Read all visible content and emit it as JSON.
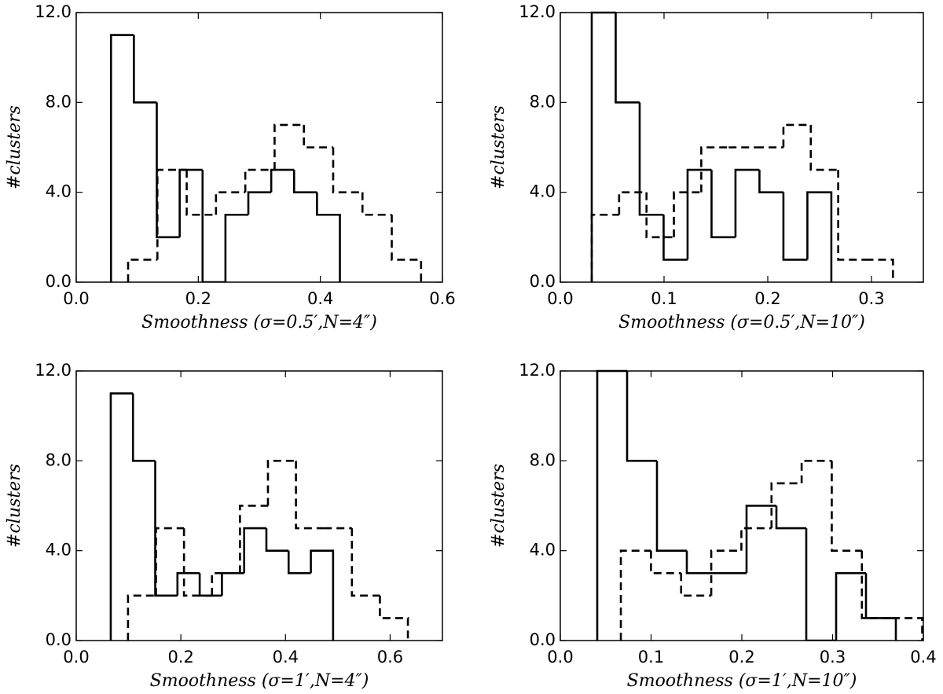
{
  "chart_data": [
    {
      "type": "histogram",
      "xlabel": "Smoothness (σ=0.5′,N=4″)",
      "ylabel": "#clusters",
      "xlim": [
        0,
        0.6
      ],
      "xticks": [
        {
          "value": 0,
          "label": "0.0"
        },
        0.2,
        0.4,
        0.6
      ],
      "ylim": [
        0,
        12
      ],
      "yticks": [
        {
          "value": 0,
          "label": "0.0"
        },
        {
          "value": 4,
          "label": "4.0"
        },
        {
          "value": 8,
          "label": "8.0"
        },
        {
          "value": 12,
          "label": "12.0"
        }
      ],
      "series": [
        {
          "color": "#000000",
          "linestyle": "solid",
          "bins": [
            0.057,
            0.0945,
            0.132,
            0.1695,
            0.207,
            0.2445,
            0.282,
            0.3195,
            0.357,
            0.3945,
            0.432
          ],
          "values": [
            11,
            8,
            2,
            5,
            0,
            3,
            4,
            5,
            4,
            3
          ]
        },
        {
          "color": "#000000",
          "linestyle": "dashed",
          "bins": [
            0.085,
            0.133,
            0.181,
            0.229,
            0.277,
            0.325,
            0.373,
            0.421,
            0.469,
            0.517,
            0.565
          ],
          "values": [
            1,
            5,
            3,
            4,
            5,
            7,
            6,
            4,
            3,
            1
          ]
        }
      ]
    },
    {
      "type": "histogram",
      "xlabel": "Smoothness (σ=0.5′,N=10″)",
      "ylabel": "#clusters",
      "xlim": [
        0,
        0.35
      ],
      "xticks": [
        {
          "value": 0,
          "label": "0.0"
        },
        0.1,
        0.2,
        0.3
      ],
      "ylim": [
        0,
        12
      ],
      "yticks": [
        {
          "value": 0,
          "label": "0.0"
        },
        {
          "value": 4,
          "label": "4.0"
        },
        {
          "value": 8,
          "label": "8.0"
        },
        {
          "value": 12,
          "label": "12.0"
        }
      ],
      "series": [
        {
          "color": "#000000",
          "linestyle": "solid",
          "bins": [
            0.0303,
            0.0534,
            0.0765,
            0.0996,
            0.1227,
            0.1458,
            0.1689,
            0.192,
            0.2151,
            0.2382,
            0.2613
          ],
          "values": [
            12,
            8,
            3,
            1,
            5,
            2,
            5,
            4,
            1,
            4
          ]
        },
        {
          "color": "#000000",
          "linestyle": "dashed",
          "bins": [
            0.0303,
            0.0567,
            0.0831,
            0.1095,
            0.1359,
            0.1623,
            0.1887,
            0.2151,
            0.2415,
            0.2679,
            0.2943,
            0.3207
          ],
          "values": [
            3,
            4,
            2,
            4,
            6,
            6,
            6,
            7,
            5,
            1,
            1
          ]
        }
      ]
    },
    {
      "type": "histogram",
      "xlabel": "Smoothness (σ=1′,N=4″)",
      "ylabel": "#clusters",
      "xlim": [
        0,
        0.7
      ],
      "xticks": [
        {
          "value": 0,
          "label": "0.0"
        },
        0.2,
        0.4,
        0.6
      ],
      "ylim": [
        0,
        12
      ],
      "yticks": [
        {
          "value": 0,
          "label": "0.0"
        },
        {
          "value": 4,
          "label": "4.0"
        },
        {
          "value": 8,
          "label": "8.0"
        },
        {
          "value": 12,
          "label": "12.0"
        }
      ],
      "series": [
        {
          "color": "#000000",
          "linestyle": "solid",
          "bins": [
            0.066,
            0.1085,
            0.151,
            0.1935,
            0.236,
            0.2785,
            0.321,
            0.3635,
            0.406,
            0.4485,
            0.491
          ],
          "values": [
            11,
            8,
            2,
            3,
            2,
            3,
            5,
            4,
            3,
            4
          ]
        },
        {
          "color": "#000000",
          "linestyle": "dashed",
          "bins": [
            0.099,
            0.1525,
            0.206,
            0.2595,
            0.313,
            0.3665,
            0.42,
            0.4735,
            0.527,
            0.5805,
            0.634
          ],
          "values": [
            2,
            5,
            2,
            3,
            6,
            8,
            5,
            5,
            2,
            1
          ]
        }
      ]
    },
    {
      "type": "histogram",
      "xlabel": "Smoothness (σ=1′,N=10″)",
      "ylabel": "#clusters",
      "xlim": [
        0,
        0.4
      ],
      "xticks": [
        {
          "value": 0,
          "label": "0.0"
        },
        0.1,
        0.2,
        0.3,
        0.4
      ],
      "ylim": [
        0,
        12
      ],
      "yticks": [
        {
          "value": 0,
          "label": "0.0"
        },
        {
          "value": 4,
          "label": "4.0"
        },
        {
          "value": 8,
          "label": "8.0"
        },
        {
          "value": 12,
          "label": "12.0"
        }
      ],
      "series": [
        {
          "color": "#000000",
          "linestyle": "solid",
          "bins": [
            0.0407,
            0.0736,
            0.1065,
            0.1394,
            0.1723,
            0.2052,
            0.2381,
            0.271,
            0.3039,
            0.3368,
            0.3697
          ],
          "values": [
            12,
            8,
            4,
            3,
            3,
            6,
            5,
            0,
            3,
            1
          ]
        },
        {
          "color": "#000000",
          "linestyle": "dashed",
          "bins": [
            0.0667,
            0.0999,
            0.1331,
            0.1663,
            0.1995,
            0.2327,
            0.2659,
            0.2991,
            0.3323,
            0.3655,
            0.3987
          ],
          "values": [
            4,
            3,
            2,
            4,
            5,
            7,
            8,
            4,
            1,
            1
          ]
        }
      ]
    }
  ]
}
